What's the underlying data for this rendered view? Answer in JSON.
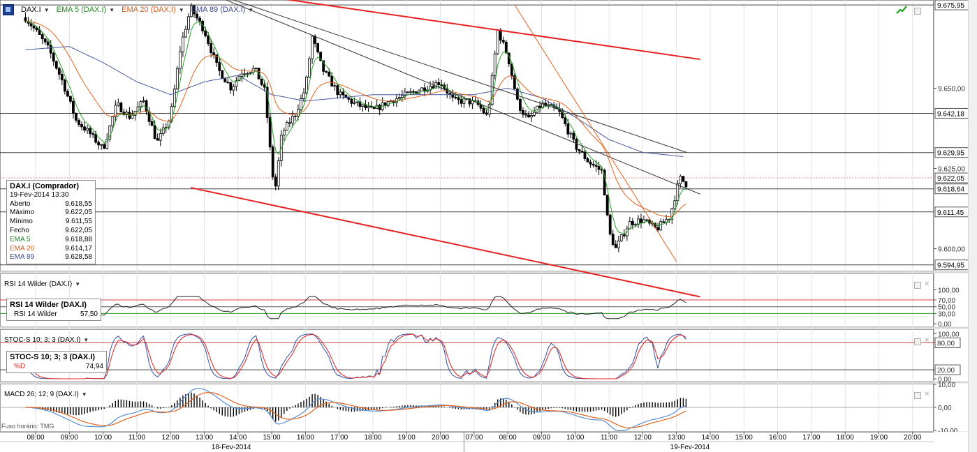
{
  "header": {
    "symbol": "DAX.I",
    "ema5_label": "EMA 5 (DAX.I)",
    "ema20_label": "EMA 20 (DAX.I)",
    "ema89_label": "EMA 89 (DAX.I)"
  },
  "colors": {
    "ema5": "#2aa02a",
    "ema20": "#e0621f",
    "ema89": "#4a5aa0",
    "channel": "#e82020",
    "stoch_k": "#3050a0",
    "stoch_d": "#e02020",
    "rsi_line": "#222222"
  },
  "info_box": {
    "title": "DAX.I (Comprador)",
    "datetime": "19-Fev-2014 13:30",
    "rows": [
      {
        "label": "Aberto",
        "value": "9.618,55"
      },
      {
        "label": "Máximo",
        "value": "9.622,05"
      },
      {
        "label": "Mínimo",
        "value": "9.611,55"
      },
      {
        "label": "Fecho",
        "value": "9.622,05"
      },
      {
        "label": "EMA 5",
        "value": "9.618,88"
      },
      {
        "label": "EMA 20",
        "value": "9.614,17"
      },
      {
        "label": "EMA 89",
        "value": "9.628,58"
      }
    ]
  },
  "rsi": {
    "title": "RSI 14 Wilder (DAX.I)",
    "box_title": "RSI 14 Wilder (DAX.I)",
    "row_label": "RSI 14 Wilder",
    "row_value": "57,50"
  },
  "stoch": {
    "title": "STOC-S 10; 3; 3 (DAX.I)",
    "box_title": "STOC-S 10; 3; 3 (DAX.I)",
    "row_label": "%D",
    "row_value": "74,94"
  },
  "macd": {
    "title": "MACD 26; 12; 9 (DAX.I)"
  },
  "timezone_label": "Fuso horário: TMG",
  "chart_data": {
    "type": "candlestick",
    "y_axis_labels": [
      "9.675,95",
      "9.650,00",
      "9.642,18",
      "9.629,95",
      "9.625,00",
      "9.622,05",
      "9.618,64",
      "9.611,45",
      "9.600,00",
      "9.594,95"
    ],
    "price_levels": [
      9675.95,
      9642.18,
      9629.95,
      9618.64,
      9611.45,
      9594.95
    ],
    "current_price": 9622.05,
    "x_tick_labels": [
      "08:00",
      "09:00",
      "10:00",
      "11:00",
      "12:00",
      "13:00",
      "14:00",
      "15:00",
      "16:00",
      "17:00",
      "18:00",
      "19:00",
      "20:00",
      "07:00",
      "08:00",
      "09:00",
      "10:00",
      "11:00",
      "12:00",
      "13:00",
      "14:00",
      "15:00",
      "16:00",
      "17:00",
      "18:00",
      "19:00",
      "20:00"
    ],
    "date_labels": [
      "18-Fev-2014",
      "19-Fev-2014"
    ],
    "rsi_axis_labels": [
      "100,00",
      "70,00",
      "50,00",
      "30,00",
      "0,00"
    ],
    "stoch_axis_labels": [
      "100,00",
      "80,00",
      "20,00",
      "0,00"
    ],
    "macd_axis_labels": [
      "10,00",
      "0,00",
      "-10,00"
    ],
    "anchors": [
      [
        -0.3,
        9672
      ],
      [
        0,
        9668
      ],
      [
        0.4,
        9662
      ],
      [
        0.8,
        9652
      ],
      [
        1.2,
        9640
      ],
      [
        1.6,
        9636
      ],
      [
        2.0,
        9631
      ],
      [
        2.4,
        9645
      ],
      [
        2.8,
        9641
      ],
      [
        3.2,
        9646
      ],
      [
        3.6,
        9633
      ],
      [
        4.0,
        9641
      ],
      [
        4.3,
        9663
      ],
      [
        4.6,
        9675
      ],
      [
        5.0,
        9668
      ],
      [
        5.4,
        9656
      ],
      [
        5.8,
        9650
      ],
      [
        6.1,
        9655
      ],
      [
        6.5,
        9656
      ],
      [
        6.8,
        9649
      ],
      [
        7.0,
        9625
      ],
      [
        7.1,
        9618
      ],
      [
        7.3,
        9636
      ],
      [
        7.7,
        9642
      ],
      [
        8.0,
        9650
      ],
      [
        8.2,
        9666
      ],
      [
        8.5,
        9656
      ],
      [
        9.0,
        9648
      ],
      [
        9.5,
        9645
      ],
      [
        10.0,
        9643
      ],
      [
        10.5,
        9646
      ],
      [
        11.0,
        9648
      ],
      [
        11.5,
        9650
      ],
      [
        12.0,
        9652
      ],
      [
        12.4,
        9646
      ],
      [
        12.8,
        9646
      ],
      [
        13.1,
        9645
      ],
      [
        13.4,
        9641
      ],
      [
        13.7,
        9668
      ],
      [
        14.0,
        9660
      ],
      [
        14.3,
        9645
      ],
      [
        14.6,
        9640
      ],
      [
        15.0,
        9645
      ],
      [
        15.5,
        9643
      ],
      [
        16.0,
        9632
      ],
      [
        16.4,
        9627
      ],
      [
        16.8,
        9624
      ],
      [
        17.0,
        9605
      ],
      [
        17.2,
        9600
      ],
      [
        17.6,
        9608
      ],
      [
        18.0,
        9609
      ],
      [
        18.4,
        9606
      ],
      [
        18.8,
        9610
      ],
      [
        19.1,
        9622
      ],
      [
        19.3,
        9620
      ]
    ],
    "ema89_anchors": [
      [
        -0.3,
        9662
      ],
      [
        1.0,
        9663
      ],
      [
        2.0,
        9658
      ],
      [
        3.0,
        9652
      ],
      [
        4.0,
        9648
      ],
      [
        5.0,
        9652
      ],
      [
        6.0,
        9654
      ],
      [
        7.0,
        9648
      ],
      [
        8.0,
        9646
      ],
      [
        9.0,
        9647
      ],
      [
        10.0,
        9648
      ],
      [
        11.0,
        9648
      ],
      [
        12.0,
        9648
      ],
      [
        13.0,
        9648
      ],
      [
        14.0,
        9650
      ],
      [
        15.0,
        9647
      ],
      [
        16.0,
        9641
      ],
      [
        17.0,
        9634
      ],
      [
        18.0,
        9630
      ],
      [
        19.3,
        9628.58
      ]
    ],
    "trend_lines": [
      {
        "color": "#e82020",
        "width": 2,
        "from": [
          4.6,
          9682
        ],
        "to": [
          19.7,
          9659
        ]
      },
      {
        "color": "#e82020",
        "width": 2,
        "from": [
          4.6,
          9619
        ],
        "to": [
          19.7,
          9585
        ]
      },
      {
        "color": "#333333",
        "width": 1,
        "from": [
          4.6,
          9682
        ],
        "to": [
          19.3,
          9630
        ]
      },
      {
        "color": "#333333",
        "width": 1,
        "from": [
          4.6,
          9682
        ],
        "to": [
          19.7,
          9617
        ]
      },
      {
        "color": "#e0621f",
        "width": 1,
        "from": [
          14.2,
          9676
        ],
        "to": [
          19.0,
          9596
        ]
      }
    ]
  }
}
